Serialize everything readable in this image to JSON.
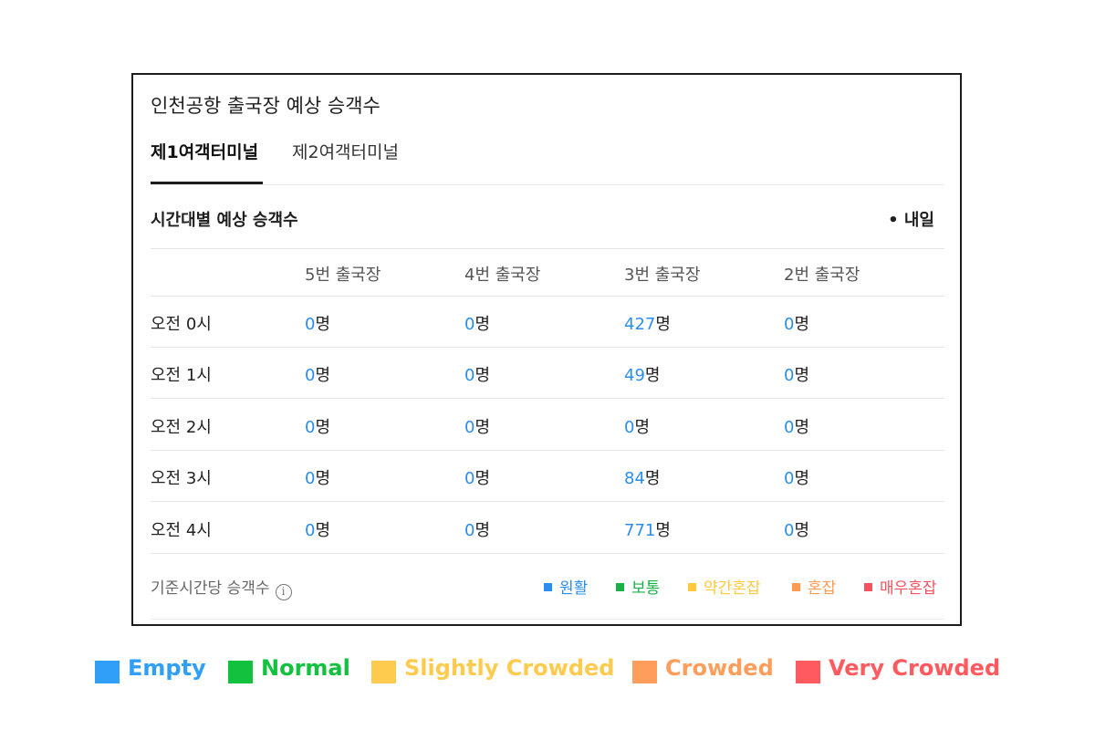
{
  "card": {
    "title": "인천공항 출국장 예상 승객수",
    "tabs": [
      {
        "label": "제1여객터미널",
        "active": true
      },
      {
        "label": "제2여객터미널",
        "active": false
      }
    ],
    "section_title": "시간대별 예상 승객수",
    "date_label": "• 내일",
    "columns": [
      "5번 출국장",
      "4번 출국장",
      "3번 출국장",
      "2번 출국장"
    ],
    "unit": "명",
    "rows": [
      {
        "time": "오전 0시",
        "values": [
          "0",
          "0",
          "427",
          "0"
        ]
      },
      {
        "time": "오전 1시",
        "values": [
          "0",
          "0",
          "49",
          "0"
        ]
      },
      {
        "time": "오전 2시",
        "values": [
          "0",
          "0",
          "0",
          "0"
        ]
      },
      {
        "time": "오전 3시",
        "values": [
          "0",
          "0",
          "84",
          "0"
        ]
      },
      {
        "time": "오전 4시",
        "values": [
          "0",
          "0",
          "771",
          "0"
        ]
      }
    ],
    "footer_label": "기준시간당 승객수",
    "info_icon": "info-icon",
    "legend": [
      {
        "label": "원활",
        "color": "#2a8df0"
      },
      {
        "label": "보통",
        "color": "#17b347"
      },
      {
        "label": "약간혼잡",
        "color": "#ffc83d"
      },
      {
        "label": "혼잡",
        "color": "#ff9a52"
      },
      {
        "label": "매우혼잡",
        "color": "#f5515f"
      }
    ]
  },
  "outer_legend": [
    {
      "label": "Empty",
      "color": "#2f9ff8"
    },
    {
      "label": "Normal",
      "color": "#12c23e"
    },
    {
      "label": "Slightly Crowded",
      "color": "#ffcb4f"
    },
    {
      "label": "Crowded",
      "color": "#ff9d5c"
    },
    {
      "label": "Very Crowded",
      "color": "#ff5a5f"
    }
  ]
}
